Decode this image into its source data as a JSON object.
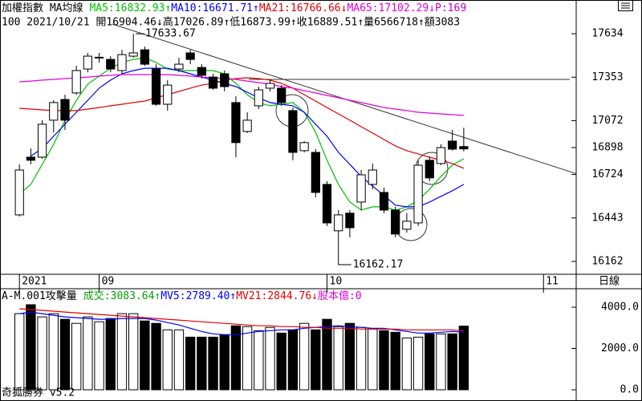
{
  "header": {
    "title": "加權指數 MA均線",
    "extra": "P:169",
    "line2": "100 2021/10/21 開16904.46↓高17026.89↑低16873.99↑收16889.51↑量6566718↑額3083",
    "footer": "奇狐勝券 v5.2"
  },
  "chart_data": [
    {
      "type": "candlestick",
      "xlim": [
        -1,
        48.8
      ],
      "xticks": [
        {
          "value": 0,
          "label": "2021"
        },
        {
          "value": 7,
          "label": "09"
        },
        {
          "value": 27,
          "label": "10"
        },
        {
          "value": 46,
          "label": "11"
        }
      ],
      "period_label": "日線",
      "ylim": [
        16079,
        17852
      ],
      "yticks": [
        17634,
        17353,
        17072,
        16898,
        16724,
        16443,
        16162
      ],
      "high_label": "17633.67",
      "low_label": "16162.17",
      "open": [
        16463,
        16836,
        16836,
        17075,
        17209,
        17251,
        17406,
        17479,
        17468,
        17396,
        17489,
        17530,
        17406,
        17178,
        17406,
        17510,
        17416,
        17354,
        17375,
        17189,
        17002,
        17168,
        17282,
        17282,
        17137,
        16878,
        16867,
        16660,
        16360,
        16474,
        16546,
        16660,
        16608,
        16494,
        16370,
        16411,
        16816,
        16795,
        16940,
        16904.46
      ],
      "high": [
        16790,
        16893,
        17075,
        17204,
        17240,
        17427,
        17510,
        17510,
        17489,
        17530,
        17633.67,
        17551,
        17437,
        17334,
        17479,
        17530,
        17437,
        17375,
        17396,
        17230,
        17126,
        17292,
        17334,
        17302,
        17157,
        16940,
        16888,
        16681,
        16494,
        16494,
        16753,
        16795,
        16639,
        16515,
        16474,
        16816,
        16836,
        16919,
        17012,
        17026.89
      ],
      "low": [
        16453,
        16790,
        16826,
        16997,
        17012,
        17240,
        17385,
        17448,
        17385,
        17375,
        17479,
        17427,
        17168,
        17137,
        17385,
        17437,
        17344,
        17271,
        17261,
        16836,
        16992,
        17147,
        17261,
        17168,
        16816,
        16867,
        16577,
        16391,
        16162.17,
        16318,
        16494,
        16629,
        16474,
        16318,
        16349,
        16391,
        16681,
        16784,
        16878,
        16873.99
      ],
      "close": [
        16753,
        16816,
        17049,
        17189,
        17075,
        17396,
        17489,
        17482,
        17406,
        17499,
        17510,
        17437,
        17178,
        17302,
        17437,
        17468,
        17365,
        17282,
        17292,
        16930,
        17075,
        17271,
        17313,
        17189,
        16867,
        16930,
        16608,
        16411,
        16463,
        16380,
        16722,
        16753,
        16494,
        16339,
        16422,
        16784,
        16702,
        16898,
        16888,
        16889.51
      ],
      "series": [
        {
          "name": "MA5",
          "label": ":16832.93↑",
          "color": "#00c000",
          "values": [
            16598,
            16660,
            16790,
            16919,
            17075,
            17204,
            17308,
            17360,
            17411,
            17448,
            17468,
            17479,
            17448,
            17406,
            17396,
            17396,
            17396,
            17396,
            17375,
            17313,
            17240,
            17189,
            17168,
            17178,
            17189,
            17126,
            16997,
            16816,
            16660,
            16546,
            16494,
            16515,
            16515,
            16494,
            16515,
            16557,
            16629,
            16712,
            16785,
            16826
          ]
        },
        {
          "name": "MA10",
          "label": ":16671.71↑",
          "color": "#0000ff",
          "values": [
            null,
            16842,
            16893,
            16971,
            17049,
            17126,
            17204,
            17282,
            17334,
            17375,
            17396,
            17411,
            17411,
            17411,
            17396,
            17375,
            17354,
            17334,
            17313,
            17292,
            17256,
            17220,
            17189,
            17178,
            17168,
            17126,
            17049,
            16971,
            16867,
            16790,
            16712,
            16650,
            16588,
            16526,
            16515,
            16515,
            16546,
            16583,
            16619,
            16660
          ]
        },
        {
          "name": "MA21",
          "label": ":16766.66↓",
          "color": "#e00000",
          "values": [
            17152,
            17147,
            17142,
            17137,
            17137,
            17137,
            17147,
            17157,
            17168,
            17178,
            17189,
            17199,
            17220,
            17240,
            17261,
            17282,
            17302,
            17313,
            17334,
            17344,
            17349,
            17344,
            17334,
            17313,
            17282,
            17240,
            17199,
            17157,
            17116,
            17075,
            17033,
            16992,
            16950,
            16909,
            16878,
            16857,
            16836,
            16816,
            16795,
            16764
          ]
        },
        {
          "name": "MA65",
          "label": ":17102.29↓",
          "color": "#e000e0",
          "values": [
            17323,
            17328,
            17334,
            17339,
            17344,
            17349,
            17354,
            17360,
            17365,
            17370,
            17370,
            17370,
            17370,
            17370,
            17365,
            17360,
            17354,
            17349,
            17344,
            17339,
            17328,
            17318,
            17308,
            17292,
            17282,
            17266,
            17251,
            17235,
            17220,
            17204,
            17189,
            17173,
            17157,
            17147,
            17137,
            17126,
            17121,
            17116,
            17111,
            17106
          ]
        }
      ]
    },
    {
      "type": "bar",
      "title": "A-M.001攻擊量",
      "name": "成交",
      "label": ":3083.64↑",
      "label_color": "#00a000",
      "ylim": [
        0,
        4000
      ],
      "yticks": [
        {
          "value": 4000,
          "label": "4000.0"
        },
        {
          "value": 2000,
          "label": "2000.0"
        },
        {
          "value": 0,
          "label": "0.0"
        }
      ],
      "values": [
        3686,
        4118,
        3529,
        3686,
        3412,
        3216,
        3529,
        3294,
        3451,
        3686,
        3686,
        3333,
        3216,
        2902,
        2902,
        2549,
        2549,
        2549,
        2667,
        3098,
        3059,
        2863,
        3020,
        2745,
        2902,
        3216,
        2902,
        3412,
        3059,
        3216,
        3020,
        2941,
        2863,
        2784,
        2510,
        2549,
        2706,
        2706,
        2706,
        3083.64
      ],
      "series": [
        {
          "name": "MV5",
          "label": ":2789.40↑",
          "color": "#0000ff",
          "values": [
            3686,
            3765,
            3686,
            3608,
            3529,
            3490,
            3451,
            3412,
            3412,
            3451,
            3451,
            3451,
            3373,
            3255,
            3137,
            2980,
            2824,
            2706,
            2667,
            2667,
            2745,
            2824,
            2863,
            2902,
            2902,
            2980,
            3020,
            3059,
            3098,
            3059,
            3020,
            2980,
            2980,
            2902,
            2824,
            2745,
            2745,
            2784,
            2824,
            2789.4
          ]
        },
        {
          "name": "MV21",
          "label": ":2844.76↓",
          "color": "#e00000",
          "values": [
            3922,
            3882,
            3843,
            3804,
            3765,
            3725,
            3686,
            3647,
            3608,
            3569,
            3529,
            3490,
            3451,
            3412,
            3373,
            3333,
            3294,
            3255,
            3216,
            3176,
            3137,
            3098,
            3098,
            3059,
            3059,
            3020,
            3020,
            2980,
            2980,
            2980,
            2941,
            2941,
            2941,
            2941,
            2902,
            2902,
            2902,
            2902,
            2902,
            2844.76
          ]
        }
      ],
      "extra": "股本億:0",
      "extra_color": "#e000e0"
    }
  ]
}
